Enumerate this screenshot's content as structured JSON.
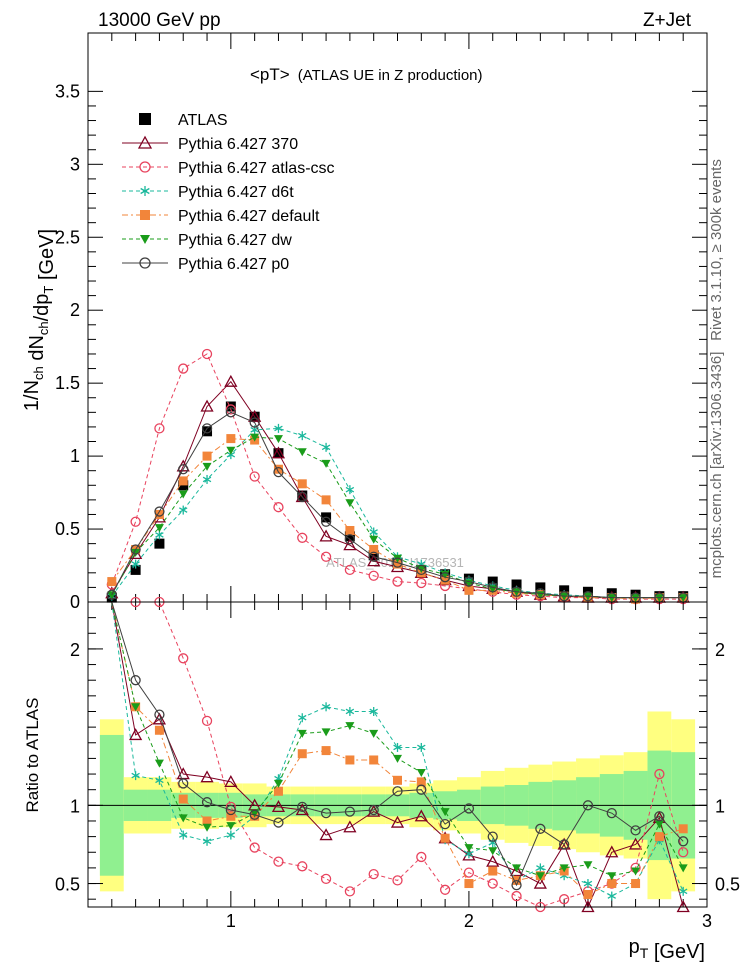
{
  "header": {
    "energy_label": "13000 GeV pp",
    "process_label": "Z+Jet"
  },
  "side_labels": {
    "rivet": "Rivet 3.1.10, ≥ 300k events",
    "mcplots": "mcplots.cern.ch [arXiv:1306.3436]"
  },
  "watermark": "ATLAS_2014_I1736531",
  "chart_data": [
    {
      "type": "scatter",
      "title_main": "<pT>",
      "title_sub": "(ATLAS UE in Z production)",
      "ylabel": "1/N_ch dN_ch/dp_T [GeV]",
      "xlim": [
        0.4,
        3.0
      ],
      "ylim": [
        0,
        3.9
      ],
      "y_ticks": [
        0,
        0.5,
        1,
        1.5,
        2,
        2.5,
        3,
        3.5
      ],
      "y_tick_labels": [
        "0",
        "0.5",
        "1",
        "1.5",
        "2",
        "2.5",
        "3",
        "3.5"
      ],
      "x_ticks": [
        1,
        2,
        3
      ],
      "x": [
        0.5,
        0.6,
        0.7,
        0.8,
        0.9,
        1.0,
        1.1,
        1.2,
        1.3,
        1.4,
        1.5,
        1.6,
        1.7,
        1.8,
        1.9,
        2.0,
        2.1,
        2.2,
        2.3,
        2.4,
        2.5,
        2.6,
        2.7,
        2.8,
        2.9
      ],
      "series": [
        {
          "name": "ATLAS",
          "color": "#000000",
          "marker": "square",
          "dash": "",
          "values": [
            0.03,
            0.22,
            0.4,
            0.8,
            1.17,
            1.34,
            1.27,
            1.02,
            0.73,
            0.58,
            0.45,
            0.32,
            0.27,
            0.22,
            0.19,
            0.16,
            0.14,
            0.12,
            0.1,
            0.08,
            0.07,
            0.06,
            0.05,
            0.04,
            0.04
          ]
        },
        {
          "name": "Pythia 6.427 370",
          "color": "#7f0022",
          "marker": "triangle-open",
          "dash": "",
          "values": [
            0.06,
            0.33,
            0.58,
            0.93,
            1.34,
            1.51,
            1.27,
            1.02,
            0.72,
            0.45,
            0.39,
            0.28,
            0.24,
            0.2,
            0.15,
            0.11,
            0.09,
            0.07,
            0.05,
            0.04,
            0.03,
            0.03,
            0.03,
            0.03,
            0.03
          ]
        },
        {
          "name": "Pythia 6.427 atlas-csc",
          "color": "#e8435e",
          "marker": "circle-open",
          "dash": "4,3",
          "values": [
            0.12,
            0.55,
            1.19,
            1.6,
            1.7,
            1.32,
            0.86,
            0.65,
            0.44,
            0.31,
            0.22,
            0.18,
            0.14,
            0.13,
            0.11,
            0.09,
            0.07,
            0.05,
            0.04,
            0.03,
            0.03,
            0.02,
            0.02,
            0.02,
            0.02
          ]
        },
        {
          "name": "Pythia 6.427 d6t",
          "color": "#1ab89c",
          "marker": "star",
          "dash": "4,3",
          "values": [
            0.04,
            0.26,
            0.46,
            0.63,
            0.84,
            1.01,
            1.18,
            1.19,
            1.14,
            1.06,
            0.77,
            0.48,
            0.31,
            0.26,
            0.2,
            0.15,
            0.11,
            0.08,
            0.06,
            0.05,
            0.04,
            0.03,
            0.03,
            0.03,
            0.03
          ]
        },
        {
          "name": "Pythia 6.427 default",
          "color": "#f2853a",
          "marker": "square",
          "dash": "6,3,2,3",
          "values": [
            0.14,
            0.36,
            0.6,
            0.83,
            1.0,
            1.12,
            1.11,
            0.91,
            0.81,
            0.7,
            0.49,
            0.36,
            0.26,
            0.2,
            0.15,
            0.08,
            0.08,
            0.06,
            0.05,
            0.04,
            0.03,
            0.03,
            0.02,
            0.03,
            0.03
          ]
        },
        {
          "name": "Pythia 6.427 dw",
          "color": "#1a9c1a",
          "marker": "triangle-down",
          "dash": "4,3",
          "values": [
            0.05,
            0.34,
            0.51,
            0.74,
            0.93,
            1.04,
            1.13,
            1.12,
            1.03,
            0.95,
            0.68,
            0.43,
            0.3,
            0.23,
            0.19,
            0.13,
            0.09,
            0.07,
            0.05,
            0.04,
            0.04,
            0.03,
            0.03,
            0.03,
            0.03
          ]
        },
        {
          "name": "Pythia 6.427 p0",
          "color": "#404040",
          "marker": "circle-open",
          "dash": "",
          "values": [
            0.05,
            0.36,
            0.62,
            0.91,
            1.19,
            1.3,
            1.23,
            0.89,
            0.72,
            0.55,
            0.43,
            0.31,
            0.27,
            0.22,
            0.17,
            0.14,
            0.1,
            0.07,
            0.06,
            0.04,
            0.04,
            0.03,
            0.03,
            0.03,
            0.03
          ]
        }
      ],
      "legend_position": "top-left"
    },
    {
      "type": "scatter",
      "ylabel": "Ratio to ATLAS",
      "xlabel": "p_T [GeV]",
      "xlim": [
        0.4,
        3.0
      ],
      "ylim": [
        0.35,
        2.3
      ],
      "y_ticks": [
        0.5,
        1,
        2
      ],
      "y_tick_labels": [
        "0.5",
        "1",
        "2"
      ],
      "x_ticks": [
        1,
        2,
        3
      ],
      "x_tick_labels": [
        "1",
        "2",
        "3"
      ],
      "reference_line": 1,
      "bands": {
        "yellow_halfwidth": [
          0.55,
          0.18,
          0.18,
          0.15,
          0.15,
          0.14,
          0.14,
          0.12,
          0.12,
          0.12,
          0.12,
          0.12,
          0.12,
          0.14,
          0.16,
          0.18,
          0.22,
          0.24,
          0.26,
          0.28,
          0.3,
          0.32,
          0.34,
          0.6,
          0.55
        ],
        "green_halfwidth": [
          0.45,
          0.1,
          0.1,
          0.08,
          0.08,
          0.08,
          0.07,
          0.07,
          0.07,
          0.07,
          0.07,
          0.07,
          0.07,
          0.08,
          0.09,
          0.1,
          0.12,
          0.13,
          0.15,
          0.16,
          0.18,
          0.2,
          0.22,
          0.35,
          0.34
        ]
      },
      "x": [
        0.5,
        0.6,
        0.7,
        0.8,
        0.9,
        1.0,
        1.1,
        1.2,
        1.3,
        1.4,
        1.5,
        1.6,
        1.7,
        1.8,
        1.9,
        2.0,
        2.1,
        2.2,
        2.3,
        2.4,
        2.5,
        2.6,
        2.7,
        2.8,
        2.9
      ],
      "series": [
        {
          "name": "Pythia 6.427 370",
          "color": "#7f0022",
          "marker": "triangle-open",
          "dash": "",
          "values": [
            2.3,
            1.45,
            1.55,
            1.2,
            1.18,
            1.15,
            1.0,
            0.99,
            0.97,
            0.81,
            0.86,
            0.96,
            0.89,
            0.93,
            0.79,
            0.68,
            0.64,
            0.58,
            0.5,
            0.75,
            0.3,
            0.7,
            0.75,
            0.92,
            0.35
          ]
        },
        {
          "name": "Pythia 6.427 atlas-csc",
          "color": "#e8435e",
          "marker": "circle-open",
          "dash": "4,3",
          "values": [
            2.3,
            2.3,
            2.3,
            1.94,
            1.54,
            0.99,
            0.73,
            0.64,
            0.61,
            0.53,
            0.45,
            0.56,
            0.52,
            0.67,
            0.46,
            0.57,
            0.5,
            0.42,
            0.35,
            0.4,
            0.45,
            0.5,
            0.6,
            1.2,
            0.7
          ]
        },
        {
          "name": "Pythia 6.427 d6t",
          "color": "#1ab89c",
          "marker": "star",
          "dash": "4,3",
          "values": [
            2.3,
            1.19,
            1.16,
            0.81,
            0.77,
            0.81,
            0.93,
            1.17,
            1.56,
            1.63,
            1.6,
            1.6,
            1.37,
            1.37,
            0.78,
            0.69,
            0.76,
            0.52,
            0.6,
            0.55,
            0.5,
            0.42,
            0.5,
            0.78,
            0.45
          ]
        },
        {
          "name": "Pythia 6.427 default",
          "color": "#f2853a",
          "marker": "square",
          "dash": "6,3,2,3",
          "values": [
            2.3,
            1.63,
            1.48,
            1.04,
            0.9,
            0.93,
            0.93,
            1.09,
            1.33,
            1.35,
            1.29,
            1.29,
            1.16,
            1.15,
            0.79,
            0.5,
            0.58,
            0.52,
            0.55,
            0.58,
            0.43,
            0.5,
            0.5,
            0.8,
            0.85
          ]
        },
        {
          "name": "Pythia 6.427 dw",
          "color": "#1a9c1a",
          "marker": "triangle-down",
          "dash": "4,3",
          "values": [
            2.3,
            1.63,
            1.27,
            0.92,
            0.86,
            0.87,
            0.95,
            1.14,
            1.46,
            1.47,
            1.51,
            1.46,
            1.3,
            1.21,
            0.96,
            0.73,
            0.71,
            0.6,
            0.55,
            0.6,
            0.62,
            0.55,
            0.58,
            0.88,
            0.6
          ]
        },
        {
          "name": "Pythia 6.427 p0",
          "color": "#404040",
          "marker": "circle-open",
          "dash": "",
          "values": [
            2.3,
            1.8,
            1.58,
            1.14,
            1.02,
            0.97,
            0.94,
            0.89,
            0.99,
            0.95,
            0.96,
            0.97,
            1.09,
            1.1,
            0.88,
            0.98,
            0.8,
            0.49,
            0.85,
            0.75,
            1.0,
            0.95,
            0.84,
            0.93,
            0.77
          ]
        }
      ]
    }
  ]
}
